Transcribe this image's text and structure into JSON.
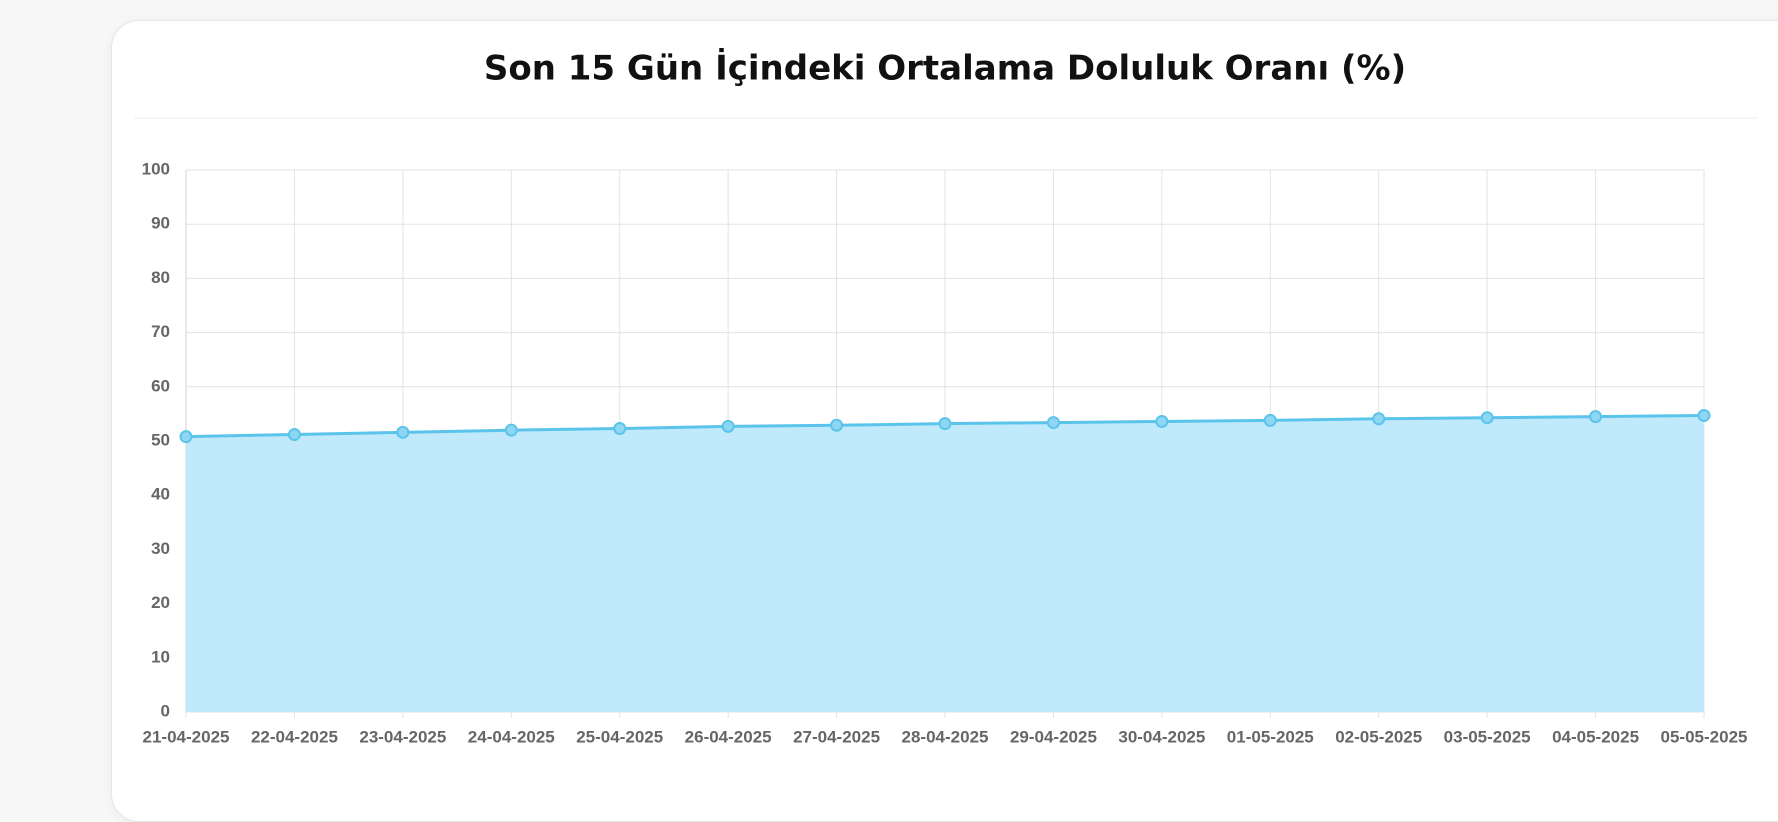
{
  "chart_data": {
    "type": "area",
    "title": "Son 15 Gün İçindeki Ortalama Doluluk Oranı (%)",
    "categories": [
      "21-04-2025",
      "22-04-2025",
      "23-04-2025",
      "24-04-2025",
      "25-04-2025",
      "26-04-2025",
      "27-04-2025",
      "28-04-2025",
      "29-04-2025",
      "30-04-2025",
      "01-05-2025",
      "02-05-2025",
      "03-05-2025",
      "04-05-2025",
      "05-05-2025"
    ],
    "values": [
      50.8,
      51.2,
      51.6,
      52.0,
      52.3,
      52.7,
      52.9,
      53.2,
      53.4,
      53.6,
      53.8,
      54.1,
      54.3,
      54.5,
      54.7
    ],
    "color": "#5bc4ea",
    "fill_color": "#bde9fb",
    "ylim": [
      0,
      100
    ],
    "yticks": [
      0,
      10,
      20,
      30,
      40,
      50,
      60,
      70,
      80,
      90,
      100
    ],
    "grid": true
  }
}
